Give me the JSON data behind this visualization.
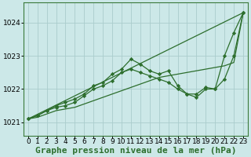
{
  "bg_color": "#cce8e8",
  "grid_color": "#aacccc",
  "line_color": "#2d6e2d",
  "marker_color": "#2d6e2d",
  "title": "Graphe pression niveau de la mer (hPa)",
  "xlim": [
    -0.5,
    23.5
  ],
  "ylim": [
    1020.6,
    1024.6
  ],
  "yticks": [
    1021,
    1022,
    1023,
    1024
  ],
  "xticks": [
    0,
    1,
    2,
    3,
    4,
    5,
    6,
    7,
    8,
    9,
    10,
    11,
    12,
    13,
    14,
    15,
    16,
    17,
    18,
    19,
    20,
    21,
    22,
    23
  ],
  "series": [
    {
      "x": [
        0,
        23
      ],
      "y": [
        1021.1,
        1024.3
      ],
      "has_markers": false,
      "lw": 0.9
    },
    {
      "x": [
        0,
        1,
        2,
        3,
        4,
        5,
        6,
        7,
        8,
        9,
        10,
        11,
        12,
        13,
        14,
        15,
        16,
        17,
        18,
        19,
        20,
        21,
        22,
        23
      ],
      "y": [
        1021.1,
        1021.2,
        1021.35,
        1021.5,
        1021.6,
        1021.7,
        1021.85,
        1022.1,
        1022.2,
        1022.45,
        1022.6,
        1022.9,
        1022.75,
        1022.55,
        1022.45,
        1022.55,
        1022.1,
        1021.85,
        1021.85,
        1022.05,
        1022.0,
        1023.0,
        1023.7,
        1024.3
      ],
      "has_markers": true,
      "lw": 0.9
    },
    {
      "x": [
        0,
        1,
        2,
        3,
        4,
        5,
        6,
        7,
        8,
        9,
        10,
        11,
        12,
        13,
        14,
        15,
        16,
        17,
        18,
        19,
        20,
        21,
        22,
        23
      ],
      "y": [
        1021.1,
        1021.2,
        1021.35,
        1021.45,
        1021.5,
        1021.6,
        1021.8,
        1022.0,
        1022.1,
        1022.25,
        1022.5,
        1022.6,
        1022.5,
        1022.4,
        1022.3,
        1022.2,
        1022.0,
        1021.85,
        1021.75,
        1022.0,
        1022.0,
        1022.3,
        1023.0,
        1024.3
      ],
      "has_markers": true,
      "lw": 0.9
    },
    {
      "x": [
        0,
        1,
        2,
        3,
        4,
        5,
        6,
        7,
        8,
        9,
        10,
        11,
        12,
        13,
        14,
        15,
        16,
        17,
        18,
        19,
        20,
        21,
        22,
        23
      ],
      "y": [
        1021.1,
        1021.15,
        1021.25,
        1021.35,
        1021.4,
        1021.45,
        1021.55,
        1021.65,
        1021.75,
        1021.85,
        1021.95,
        1022.05,
        1022.15,
        1022.25,
        1022.35,
        1022.4,
        1022.45,
        1022.5,
        1022.55,
        1022.6,
        1022.65,
        1022.7,
        1022.8,
        1024.3
      ],
      "has_markers": false,
      "lw": 0.9
    }
  ],
  "title_fontsize": 8,
  "tick_fontsize": 6.5,
  "title_fontfamily": "monospace",
  "title_bold": true,
  "figsize": [
    3.2,
    2.0
  ],
  "dpi": 100
}
